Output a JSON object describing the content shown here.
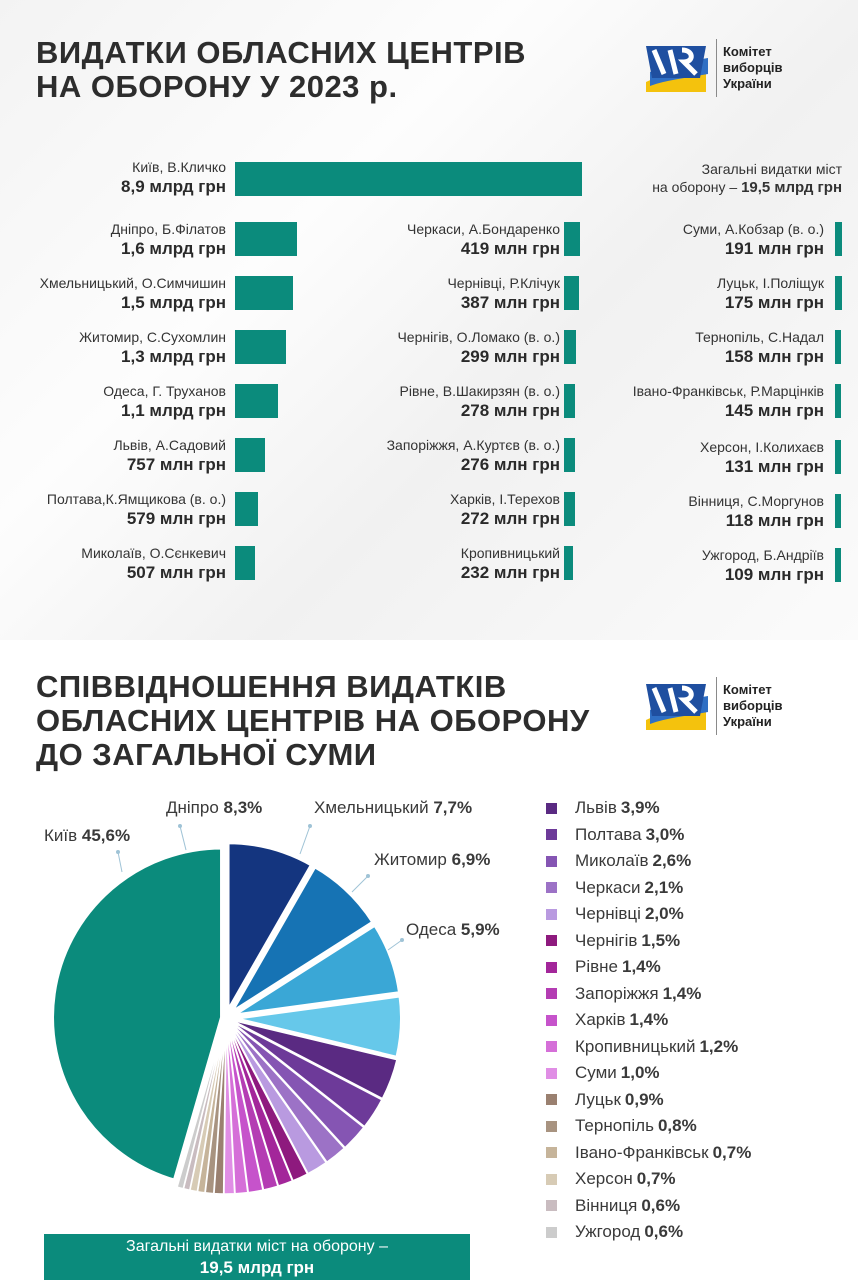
{
  "panel1": {
    "title_line1": "ВИДАТКИ ОБЛАСНИХ ЦЕНТРІВ",
    "title_line2": "НА ОБОРОНУ У 2023 р.",
    "total_line1": "Загальні видатки міст",
    "total_prefix": "на оборону – ",
    "total_value": "19,5 млрд грн"
  },
  "logo": {
    "line1": "Комітет",
    "line2": "виборців",
    "line3": "України"
  },
  "panel2": {
    "title_line1": "СПІВВІДНОШЕННЯ ВИДАТКІВ",
    "title_line2": "ОБЛАСНИХ ЦЕНТРІВ НА ОБОРОНУ",
    "title_line3": "ДО ЗАГАЛЬНОЇ СУМИ",
    "total_line1": "Загальні видатки міст на оборону –",
    "total_line2": "19,5 млрд грн"
  },
  "chart_data": [
    {
      "type": "bar",
      "orientation": "horizontal",
      "unit": "млн грн",
      "categories": [
        "Київ, В.Кличко",
        "Дніпро, Б.Філатов",
        "Хмельницький, О.Симчишин",
        "Житомир, С.Сухомлин",
        "Одеса, Г. Труханов",
        "Львів, А.Садовий",
        "Полтава,К.Ямщикова (в. о.)",
        "Миколаїв, О.Сєнкевич",
        "Черкаси, А.Бондаренко",
        "Чернівці, Р.Клічук",
        "Чернігів, О.Ломако (в. о.)",
        "Рівне, В.Шакирзян (в. о.)",
        "Запоріжжя, А.Куртєв (в. о.)",
        "Харків, І.Терехов",
        "Кропивницький",
        "Суми, А.Кобзар (в. о.)",
        "Луцьк, І.Поліщук",
        "Тернопіль, С.Надал",
        "Івано-Франківськ, Р.Марцінків",
        "Херсон, І.Колихаєв",
        "Вінниця, С.Моргунов",
        "Ужгород, Б.Андріїв"
      ],
      "labels": [
        "8,9 млрд грн",
        "1,6 млрд грн",
        "1,5 млрд грн",
        "1,3 млрд грн",
        "1,1 млрд грн",
        "757 млн грн",
        "579 млн грн",
        "507 млн грн",
        "419 млн грн",
        "387 млн грн",
        "299 млн грн",
        "278 млн грн",
        "276 млн грн",
        "272 млн грн",
        "232 млн грн",
        "191 млн грн",
        "175 млн грн",
        "158 млн грн",
        "145 млн грн",
        "131 млн грн",
        "118 млн грн",
        "109 млн грн"
      ],
      "values": [
        8900,
        1600,
        1500,
        1300,
        1100,
        757,
        579,
        507,
        419,
        387,
        299,
        278,
        276,
        272,
        232,
        191,
        175,
        158,
        145,
        131,
        118,
        109
      ],
      "bar_color": "#0b8b7c"
    },
    {
      "type": "pie",
      "categories": [
        "Київ",
        "Дніпро",
        "Хмельницький",
        "Житомир",
        "Одеса",
        "Львів",
        "Полтава",
        "Миколаїв",
        "Черкаси",
        "Чернівці",
        "Чернігів",
        "Рівне",
        "Запоріжжя",
        "Харків",
        "Кропивницький",
        "Суми",
        "Луцьк",
        "Тернопіль",
        "Івано-Франківськ",
        "Херсон",
        "Вінниця",
        "Ужгород"
      ],
      "values": [
        45.6,
        8.3,
        7.7,
        6.9,
        5.9,
        3.9,
        3.0,
        2.6,
        2.1,
        2.0,
        1.5,
        1.4,
        1.4,
        1.4,
        1.2,
        1.0,
        0.9,
        0.8,
        0.7,
        0.7,
        0.6,
        0.6
      ],
      "value_labels": [
        "45,6%",
        "8,3%",
        "7,7%",
        "6,9%",
        "5,9%",
        "3,9%",
        "3,0%",
        "2,6%",
        "2,1%",
        "2,0%",
        "1,5%",
        "1,4%",
        "1,4%",
        "1,4%",
        "1,2%",
        "1,0%",
        "0,9%",
        "0,8%",
        "0,7%",
        "0,7%",
        "0,6%",
        "0,6%"
      ],
      "colors": [
        "#0b8b7c",
        "#14357f",
        "#1673b4",
        "#3aa7d6",
        "#66c8ea",
        "#5a2a82",
        "#6d3a99",
        "#8555b3",
        "#9c72c6",
        "#b99ae0",
        "#8e1a7e",
        "#a3269a",
        "#b43cb3",
        "#c653cb",
        "#d56fd8",
        "#e08ee5",
        "#9a8070",
        "#a89380",
        "#c6b49a",
        "#d7cbb5",
        "#c9bcc0",
        "#cccccc"
      ]
    }
  ]
}
